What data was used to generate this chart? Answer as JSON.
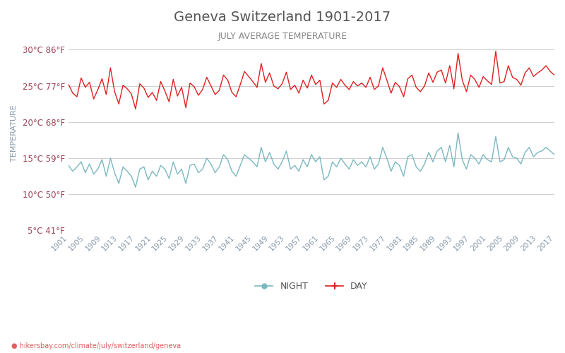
{
  "title": "Geneva Switzerland 1901-2017",
  "subtitle": "JULY AVERAGE TEMPERATURE",
  "ylabel": "TEMPERATURE",
  "url_text": "hikersbay.com/climate/july/switzerland/geneva",
  "legend_night": "NIGHT",
  "legend_day": "DAY",
  "color_day": "#e02020",
  "color_night": "#7ab8c0",
  "color_grid": "#d0d0d0",
  "color_title": "#555555",
  "color_subtitle": "#888888",
  "color_ylabel": "#8899aa",
  "color_tick": "#994455",
  "bg_color": "#ffffff",
  "ylim_min": 5,
  "ylim_max": 32,
  "yticks_celsius": [
    5,
    10,
    15,
    20,
    25,
    30
  ],
  "yticks_fahrenheit": [
    41,
    50,
    59,
    68,
    77,
    86
  ],
  "years": [
    1901,
    1902,
    1903,
    1904,
    1905,
    1906,
    1907,
    1908,
    1909,
    1910,
    1911,
    1912,
    1913,
    1914,
    1915,
    1916,
    1917,
    1918,
    1919,
    1920,
    1921,
    1922,
    1923,
    1924,
    1925,
    1926,
    1927,
    1928,
    1929,
    1930,
    1931,
    1932,
    1933,
    1934,
    1935,
    1936,
    1937,
    1938,
    1939,
    1940,
    1941,
    1942,
    1943,
    1944,
    1945,
    1946,
    1947,
    1948,
    1949,
    1950,
    1951,
    1952,
    1953,
    1954,
    1955,
    1956,
    1957,
    1958,
    1959,
    1960,
    1961,
    1962,
    1963,
    1964,
    1965,
    1966,
    1967,
    1968,
    1969,
    1970,
    1971,
    1972,
    1973,
    1974,
    1975,
    1976,
    1977,
    1978,
    1979,
    1980,
    1981,
    1982,
    1983,
    1984,
    1985,
    1986,
    1987,
    1988,
    1989,
    1990,
    1991,
    1992,
    1993,
    1994,
    1995,
    1996,
    1997,
    1998,
    1999,
    2000,
    2001,
    2002,
    2003,
    2004,
    2005,
    2006,
    2007,
    2008,
    2009,
    2010,
    2011,
    2012,
    2013,
    2014,
    2015,
    2016,
    2017
  ],
  "day_temps": [
    25.2,
    24.0,
    23.5,
    26.1,
    24.8,
    25.5,
    23.2,
    24.5,
    26.0,
    23.8,
    27.5,
    24.2,
    22.5,
    25.1,
    24.6,
    23.9,
    21.8,
    25.3,
    24.7,
    23.4,
    24.1,
    23.0,
    25.6,
    24.3,
    22.8,
    25.9,
    23.6,
    24.8,
    22.0,
    25.4,
    24.9,
    23.7,
    24.5,
    26.2,
    25.0,
    23.8,
    24.4,
    26.5,
    25.8,
    24.1,
    23.5,
    25.2,
    27.0,
    26.3,
    25.6,
    24.8,
    28.1,
    25.5,
    26.8,
    25.0,
    24.6,
    25.3,
    26.9,
    24.5,
    25.1,
    24.0,
    25.8,
    24.7,
    26.5,
    25.2,
    25.8,
    22.5,
    23.0,
    25.4,
    24.8,
    25.9,
    25.1,
    24.5,
    25.6,
    25.0,
    25.4,
    24.8,
    26.2,
    24.5,
    25.0,
    27.5,
    25.8,
    24.0,
    25.5,
    24.9,
    23.5,
    26.0,
    26.5,
    24.8,
    24.2,
    25.0,
    26.8,
    25.5,
    26.9,
    27.2,
    25.4,
    27.8,
    24.6,
    29.5,
    25.8,
    24.2,
    26.5,
    25.9,
    24.8,
    26.3,
    25.7,
    25.2,
    29.8,
    25.4,
    25.6,
    27.8,
    26.2,
    25.9,
    25.1,
    26.8,
    27.5,
    26.3,
    26.8,
    27.2,
    27.8,
    27.0,
    26.5
  ],
  "night_temps": [
    14.0,
    13.2,
    13.8,
    14.5,
    13.0,
    14.2,
    12.8,
    13.5,
    14.8,
    12.5,
    15.0,
    13.0,
    11.5,
    13.8,
    13.2,
    12.5,
    11.0,
    13.5,
    13.8,
    12.0,
    13.2,
    12.5,
    14.0,
    13.5,
    12.2,
    14.5,
    12.8,
    13.5,
    11.5,
    14.0,
    14.2,
    13.0,
    13.5,
    15.0,
    14.2,
    13.0,
    13.8,
    15.5,
    14.8,
    13.2,
    12.5,
    14.0,
    15.5,
    15.0,
    14.5,
    13.8,
    16.5,
    14.5,
    15.8,
    14.2,
    13.5,
    14.5,
    16.0,
    13.5,
    14.0,
    13.2,
    14.8,
    13.8,
    15.5,
    14.5,
    15.2,
    12.0,
    12.5,
    14.5,
    13.8,
    15.0,
    14.2,
    13.5,
    14.8,
    14.0,
    14.5,
    13.8,
    15.2,
    13.5,
    14.2,
    16.5,
    15.0,
    13.2,
    14.5,
    14.0,
    12.5,
    15.2,
    15.5,
    13.8,
    13.2,
    14.2,
    15.8,
    14.5,
    16.0,
    16.5,
    14.5,
    16.8,
    13.8,
    18.5,
    14.8,
    13.5,
    15.5,
    15.0,
    14.2,
    15.5,
    14.8,
    14.5,
    18.0,
    14.5,
    14.8,
    16.5,
    15.2,
    15.0,
    14.2,
    15.8,
    16.5,
    15.2,
    15.8,
    16.0,
    16.5,
    16.0,
    15.5
  ]
}
